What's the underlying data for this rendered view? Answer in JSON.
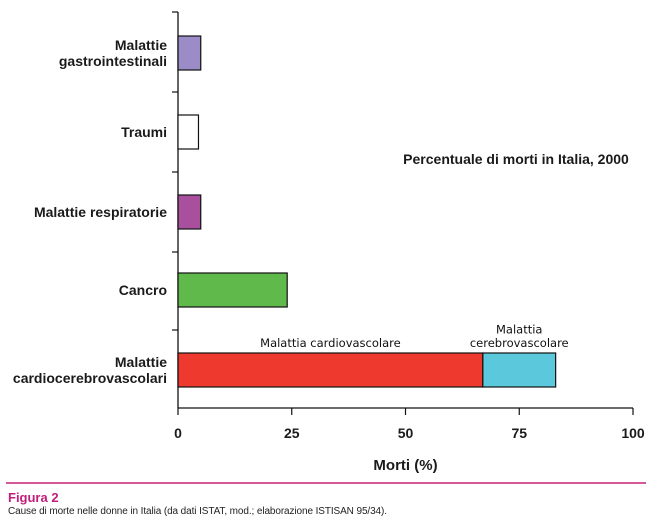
{
  "chart_data": {
    "type": "bar",
    "orientation": "horizontal",
    "title": "Percentuale di morti in Italia, 2000",
    "xlabel": "Morti (%)",
    "ylabel": "",
    "xlim": [
      0,
      100
    ],
    "xticks": [
      0,
      25,
      50,
      75,
      100
    ],
    "grid": false,
    "categories": [
      "Malattie gastrointestinali",
      "Traumi",
      "Malattie respiratorie",
      "Cancro",
      "Malattie cardiocerebrovascolari"
    ],
    "category_lines": [
      [
        "Malattie",
        "gastrointestinali"
      ],
      [
        "Traumi"
      ],
      [
        "Malattie respiratorie"
      ],
      [
        "Cancro"
      ],
      [
        "Malattie",
        "cardiocerebrovascolari"
      ]
    ],
    "bars": [
      {
        "category": "Malattie gastrointestinali",
        "segments": [
          {
            "value": 5,
            "color": "#9b8cc8"
          }
        ]
      },
      {
        "category": "Traumi",
        "segments": [
          {
            "value": 4.5,
            "color": "#ffffff"
          }
        ]
      },
      {
        "category": "Malattie respiratorie",
        "segments": [
          {
            "value": 5,
            "color": "#a8509e"
          }
        ]
      },
      {
        "category": "Cancro",
        "segments": [
          {
            "value": 24,
            "color": "#5fb94b"
          }
        ]
      },
      {
        "category": "Malattie cardiocerebrovascolari",
        "segments": [
          {
            "value": 67,
            "color": "#ee3a2e",
            "label": [
              "Malattia cardiovascolare"
            ]
          },
          {
            "value": 16,
            "color": "#5bc8dc",
            "label": [
              "Malattia",
              "cerebrovascolare"
            ]
          }
        ]
      }
    ]
  },
  "figure": {
    "label": "Figura 2",
    "caption": "Cause di morte nelle donne in Italia (da dati ISTAT, mod.; elaborazione ISTISAN 95/34)."
  },
  "colors": {
    "caption_rule": "#d6579a",
    "figure_label": "#c21d7b"
  }
}
